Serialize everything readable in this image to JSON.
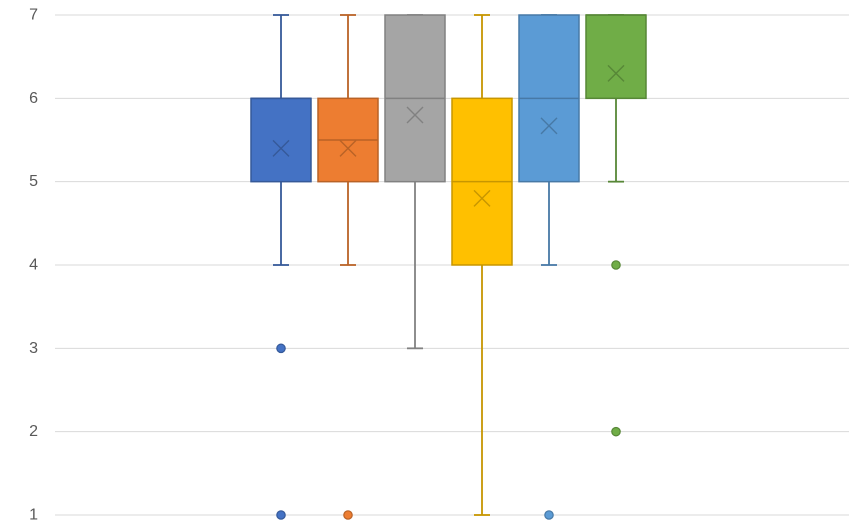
{
  "chart_data": {
    "type": "box",
    "title": "",
    "xlabel": "",
    "ylabel": "",
    "ylim": [
      1,
      7
    ],
    "yticks": [
      1,
      2,
      3,
      4,
      5,
      6,
      7
    ],
    "grid": true,
    "legend": "none",
    "series": [
      {
        "color": "#4472C4",
        "whisker_low": 4,
        "q1": 5,
        "median": 6,
        "q3": 6,
        "whisker_high": 7,
        "mean": 5.4,
        "outliers": [
          3,
          1
        ]
      },
      {
        "color": "#ED7D31",
        "whisker_low": 4,
        "q1": 5,
        "median": 5.5,
        "q3": 6,
        "whisker_high": 7,
        "mean": 5.4,
        "outliers": [
          1
        ]
      },
      {
        "color": "#A5A5A5",
        "whisker_low": 3,
        "q1": 5,
        "median": 6,
        "q3": 7,
        "whisker_high": 7,
        "mean": 5.8,
        "outliers": []
      },
      {
        "color": "#FFC000",
        "whisker_low": 1,
        "q1": 4,
        "median": 5,
        "q3": 6,
        "whisker_high": 7,
        "mean": 4.8,
        "outliers": []
      },
      {
        "color": "#5B9BD5",
        "whisker_low": 4,
        "q1": 5,
        "median": 6,
        "q3": 7,
        "whisker_high": 7,
        "mean": 5.67,
        "outliers": [
          1
        ]
      },
      {
        "color": "#70AD47",
        "whisker_low": 5,
        "q1": 6,
        "median": 7,
        "q3": 7,
        "whisker_high": 7,
        "mean": 6.3,
        "outliers": [
          4,
          2
        ]
      }
    ]
  }
}
